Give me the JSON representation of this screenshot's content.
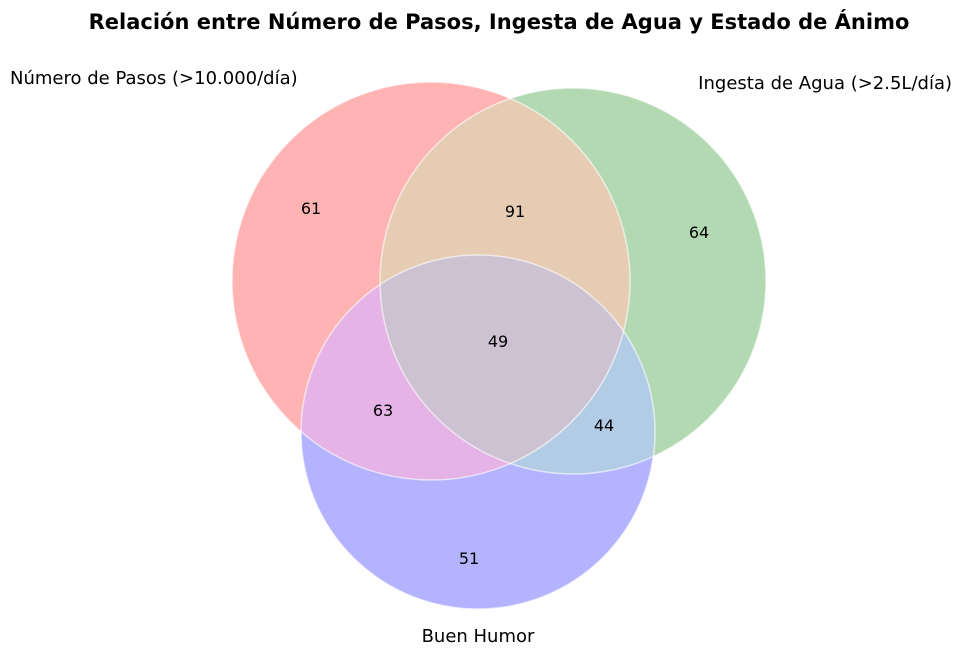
{
  "chart_data": {
    "type": "venn",
    "title": "Relación entre Número de Pasos, Ingesta de Agua y Estado de Ánimo",
    "sets": [
      {
        "name": "Número de Pasos (>10.000/día)",
        "color": "#ff0000"
      },
      {
        "name": "Ingesta de Agua (>2.5L/día)",
        "color": "#008000"
      },
      {
        "name": "Buen Humor",
        "color": "#0000ff"
      }
    ],
    "regions": {
      "pasos_only": 61,
      "agua_only": 64,
      "humor_only": 51,
      "pasos_agua": 91,
      "pasos_humor": 63,
      "agua_humor": 44,
      "all_three": 49
    },
    "region_colors": {
      "pasos_agua": "#e6ccb3",
      "pasos_humor": "#e6b3e6",
      "agua_humor": "#b3cce6",
      "all_three": "#ccc2d1"
    },
    "edge_color": "#ffffff"
  }
}
